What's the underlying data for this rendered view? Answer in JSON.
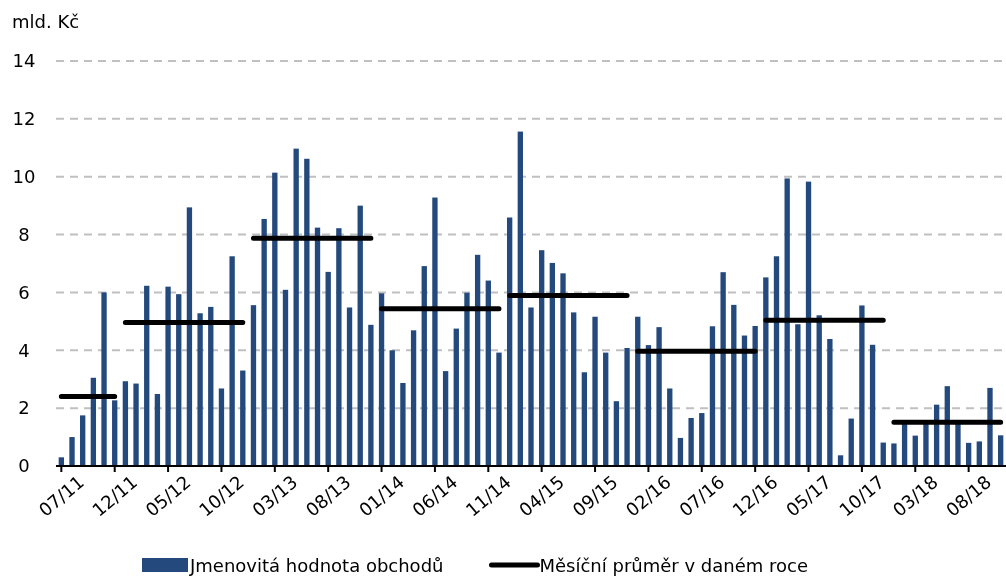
{
  "chart_data": {
    "type": "bar",
    "ylabel": "mld. Kč",
    "categories": [
      "07/11",
      null,
      null,
      null,
      null,
      "12/11",
      null,
      null,
      null,
      null,
      "05/12",
      null,
      null,
      null,
      null,
      "10/12",
      null,
      null,
      null,
      null,
      "03/13",
      null,
      null,
      null,
      null,
      "08/13",
      null,
      null,
      null,
      null,
      "01/14",
      null,
      null,
      null,
      null,
      "06/14",
      null,
      null,
      null,
      null,
      "11/14",
      null,
      null,
      null,
      null,
      "04/15",
      null,
      null,
      null,
      null,
      "09/15",
      null,
      null,
      null,
      null,
      "02/16",
      null,
      null,
      null,
      null,
      "07/16",
      null,
      null,
      null,
      null,
      "12/16",
      null,
      null,
      null,
      null,
      "05/17",
      null,
      null,
      null,
      null,
      "10/17",
      null,
      null,
      null,
      null,
      "03/18",
      null,
      null,
      null,
      null,
      "08/18",
      null,
      null,
      null
    ],
    "series": [
      {
        "name": "Jmenovitá hodnota obchodů",
        "color": "#244a7d",
        "values": [
          0.3,
          1.0,
          1.75,
          3.05,
          6.0,
          2.27,
          2.93,
          2.85,
          6.23,
          2.49,
          6.2,
          5.94,
          8.94,
          5.28,
          5.5,
          2.68,
          7.25,
          3.3,
          5.56,
          8.54,
          10.14,
          6.09,
          10.97,
          10.62,
          8.24,
          6.71,
          8.22,
          5.48,
          9.0,
          4.88,
          5.97,
          4.0,
          2.87,
          4.69,
          6.91,
          9.28,
          3.28,
          4.75,
          5.99,
          7.3,
          6.41,
          3.92,
          8.59,
          11.56,
          5.48,
          7.46,
          7.02,
          6.66,
          5.31,
          3.24,
          5.16,
          3.92,
          2.24,
          4.08,
          5.16,
          4.18,
          4.8,
          2.68,
          0.97,
          1.66,
          1.83,
          4.83,
          6.7,
          5.57,
          4.51,
          4.84,
          6.52,
          7.25,
          9.94,
          4.9,
          9.83,
          5.21,
          4.39,
          0.37,
          1.64,
          5.55,
          4.19,
          0.81,
          0.78,
          1.45,
          1.05,
          1.46,
          2.12,
          2.76,
          1.46,
          0.8,
          0.85,
          2.7,
          1.06
        ]
      },
      {
        "name": "Měsíční průměr v daném roce",
        "type": "line",
        "color": "#000000",
        "values": [
          2.4,
          2.4,
          2.4,
          2.4,
          2.4,
          2.4,
          4.96,
          4.96,
          4.96,
          4.96,
          4.96,
          4.96,
          4.96,
          4.96,
          4.96,
          4.96,
          4.96,
          4.96,
          7.87,
          7.87,
          7.87,
          7.87,
          7.87,
          7.87,
          7.87,
          7.87,
          7.87,
          7.87,
          7.87,
          7.87,
          5.44,
          5.44,
          5.44,
          5.44,
          5.44,
          5.44,
          5.44,
          5.44,
          5.44,
          5.44,
          5.44,
          5.44,
          5.89,
          5.89,
          5.89,
          5.89,
          5.89,
          5.89,
          5.89,
          5.89,
          5.89,
          5.89,
          5.89,
          5.89,
          3.97,
          3.97,
          3.97,
          3.97,
          3.97,
          3.97,
          3.97,
          3.97,
          3.97,
          3.97,
          3.97,
          3.97,
          5.04,
          5.04,
          5.04,
          5.04,
          5.04,
          5.04,
          5.04,
          5.04,
          5.04,
          5.04,
          5.04,
          5.04,
          1.51,
          1.51,
          1.51,
          1.51,
          1.51,
          1.51,
          1.51,
          1.51,
          1.51,
          1.51,
          1.51
        ]
      }
    ],
    "ylim": [
      0,
      14
    ],
    "yticks": [
      0,
      2,
      4,
      6,
      8,
      10,
      12,
      14
    ],
    "grid": "y",
    "legend": "bottom"
  }
}
